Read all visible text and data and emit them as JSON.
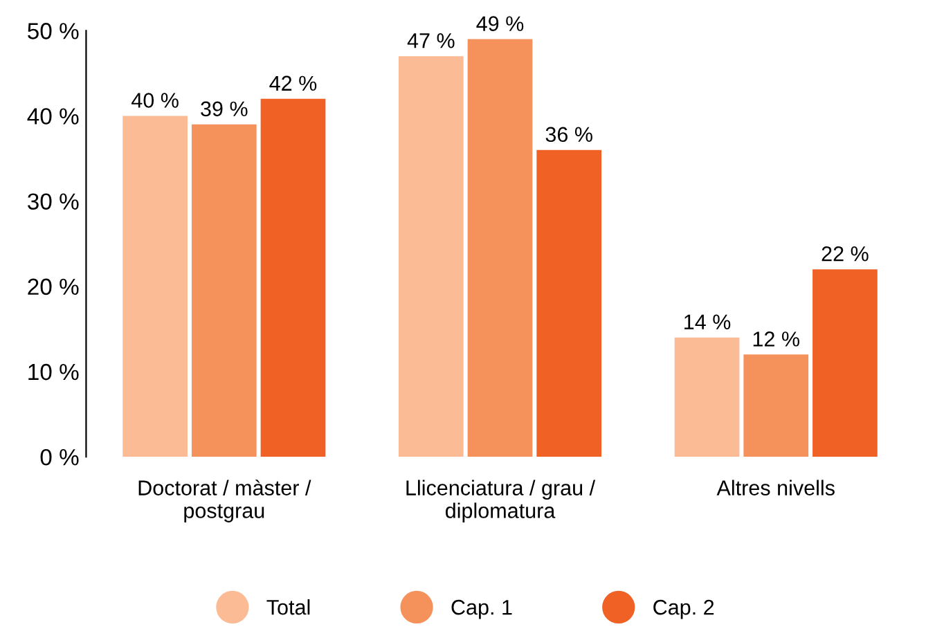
{
  "chart_data": {
    "type": "bar",
    "categories": [
      "Doctorat / màster /\npostgrau",
      "Llicenciatura / grau /\ndiplomatura",
      "Altres nivells"
    ],
    "series": [
      {
        "name": "Total",
        "color": "#fbbb95",
        "values": [
          40,
          47,
          14
        ],
        "value_labels": [
          "40 %",
          "47 %",
          "14 %"
        ]
      },
      {
        "name": "Cap. 1",
        "color": "#f5915a",
        "values": [
          39,
          49,
          12
        ],
        "value_labels": [
          "39 %",
          "49 %",
          "12 %"
        ]
      },
      {
        "name": "Cap. 2",
        "color": "#f06125",
        "values": [
          42,
          36,
          22
        ],
        "value_labels": [
          "42 %",
          "36 %",
          "22 %"
        ]
      }
    ],
    "ylim": [
      0,
      50
    ],
    "yticks": [
      {
        "value": 0,
        "label": "0 %"
      },
      {
        "value": 10,
        "label": "10 %"
      },
      {
        "value": 20,
        "label": "20 %"
      },
      {
        "value": 30,
        "label": "30 %"
      },
      {
        "value": 40,
        "label": "40 %"
      },
      {
        "value": 50,
        "label": "50 %"
      }
    ],
    "grid": false,
    "legend": "bottom",
    "marker": "circle"
  }
}
